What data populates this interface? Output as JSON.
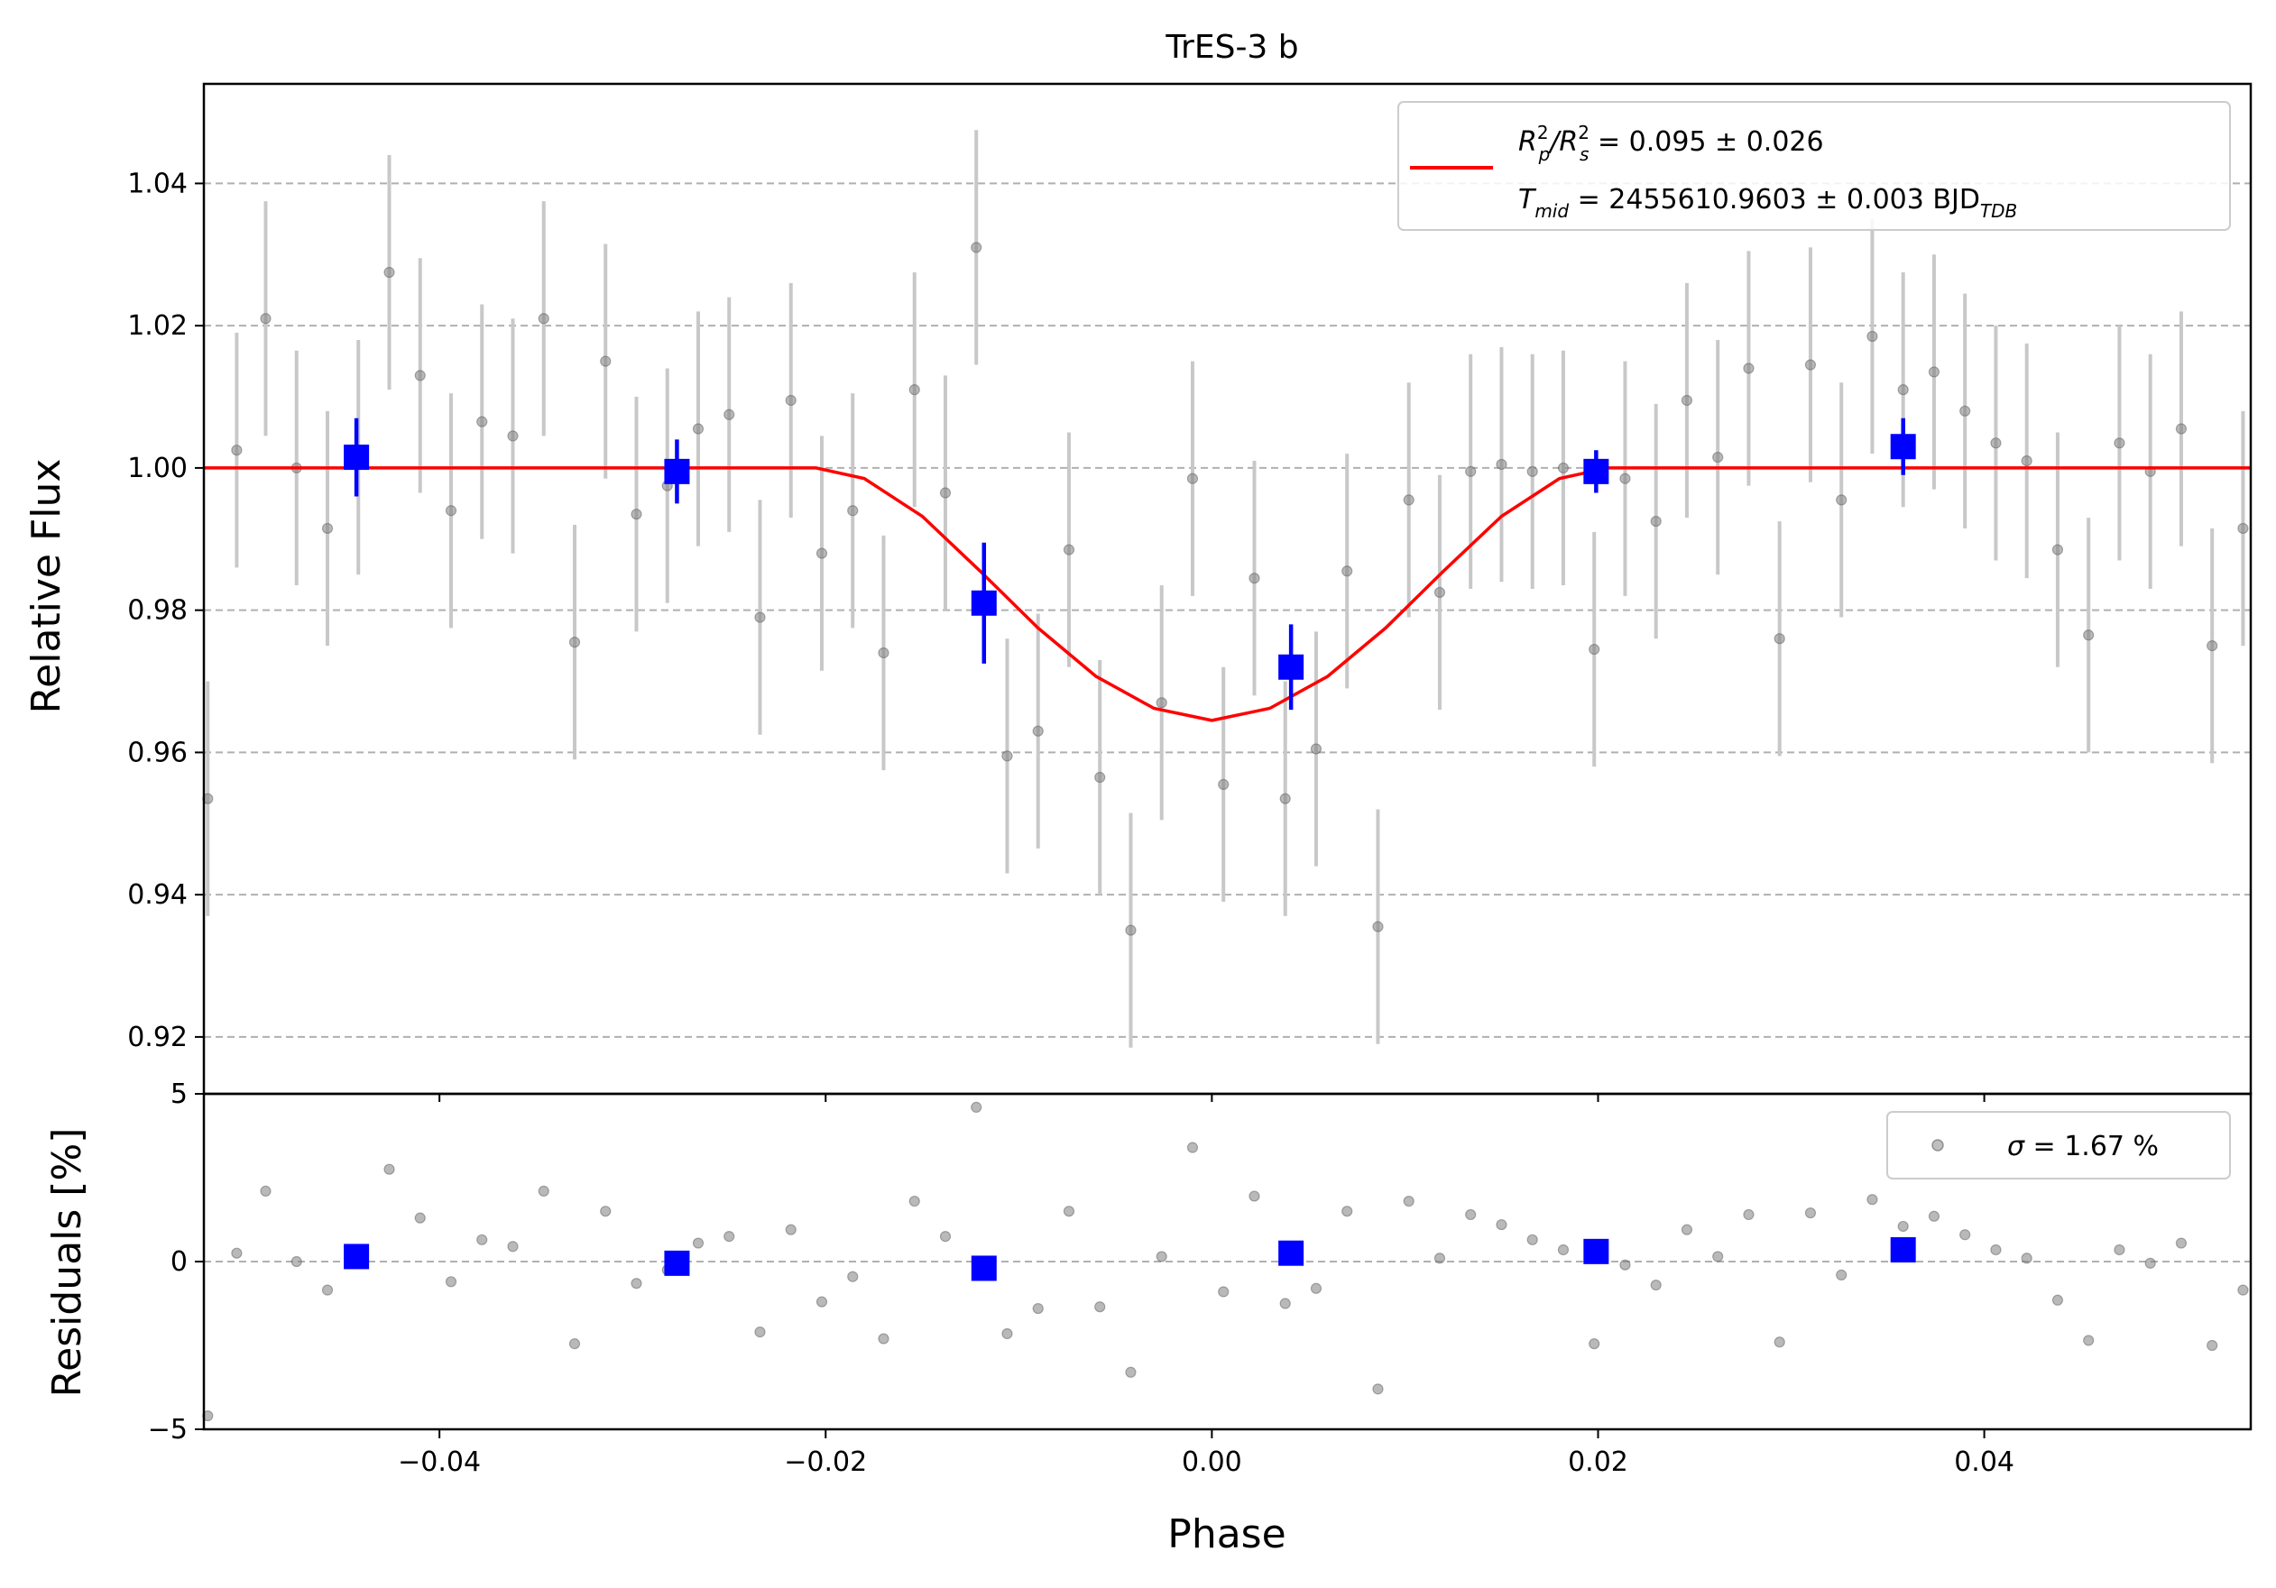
{
  "chart_data": {
    "type": "scatter",
    "title": "TrES-3 b",
    "xlabel": "Phase",
    "xlim": [
      -0.0522,
      0.0538
    ],
    "xticks": [
      -0.04,
      -0.02,
      0.0,
      0.02,
      0.04
    ],
    "xtick_labels": [
      "−0.04",
      "−0.02",
      "0.00",
      "0.02",
      "0.04"
    ],
    "grid": "horizontal dashed",
    "colors": {
      "data": "#808080",
      "errorbar": "#c8c8c8",
      "binned": "#0000ff",
      "model": "#ff0000"
    },
    "top_panel": {
      "ylabel": "Relative Flux",
      "ylim": [
        0.912,
        1.054
      ],
      "yticks": [
        0.92,
        0.94,
        0.96,
        0.98,
        1.0,
        1.02,
        1.04
      ],
      "ytick_labels": [
        "0.92",
        "0.94",
        "0.96",
        "0.98",
        "1.00",
        "1.02",
        "1.04"
      ],
      "legend_position": "top-right",
      "legend": {
        "line1_main": "Rₚ²/Rₛ² = 0.095 ± 0.026",
        "line1_a": "R",
        "line1_a_sup": "2",
        "line1_a_sub": "p",
        "line1_slash": "/R",
        "line1_b_sup": "2",
        "line1_b_sub": "s",
        "line1_value": " = 0.095 ± 0.026",
        "line2_a": "T",
        "line2_a_sub": "mid",
        "line2_value": " = 2455610.9603 ± 0.003 BJD",
        "line2_sub": "TDB"
      },
      "model": {
        "name": "transit model",
        "phase": [
          -0.0522,
          -0.0205,
          -0.018,
          -0.015,
          -0.012,
          -0.009,
          -0.006,
          -0.003,
          0.0,
          0.003,
          0.006,
          0.009,
          0.012,
          0.015,
          0.018,
          0.0205,
          0.0538
        ],
        "flux": [
          1.0,
          1.0,
          0.9985,
          0.9932,
          0.9855,
          0.9775,
          0.9707,
          0.9662,
          0.9645,
          0.9662,
          0.9707,
          0.9775,
          0.9855,
          0.9932,
          0.9985,
          1.0,
          1.0
        ]
      },
      "data": {
        "phase": [
          -0.052,
          -0.0505,
          -0.049,
          -0.0474,
          -0.0458,
          -0.0442,
          -0.0426,
          -0.041,
          -0.0394,
          -0.0378,
          -0.0362,
          -0.0346,
          -0.033,
          -0.0314,
          -0.0298,
          -0.0282,
          -0.0266,
          -0.025,
          -0.0234,
          -0.0218,
          -0.0202,
          -0.0186,
          -0.017,
          -0.0154,
          -0.0138,
          -0.0122,
          -0.0106,
          -0.009,
          -0.0074,
          -0.0058,
          -0.0042,
          -0.0026,
          -0.001,
          0.0006,
          0.0022,
          0.0038,
          0.0054,
          0.007,
          0.0086,
          0.0102,
          0.0118,
          0.0134,
          0.015,
          0.0166,
          0.0182,
          0.0198,
          0.0214,
          0.023,
          0.0246,
          0.0262,
          0.0278,
          0.0294,
          0.031,
          0.0326,
          0.0342,
          0.0358,
          0.0374,
          0.039,
          0.0406,
          0.0422,
          0.0438,
          0.0454,
          0.047,
          0.0486,
          0.0502,
          0.0518,
          0.0534
        ],
        "flux": [
          0.9535,
          1.0025,
          1.021,
          1.0,
          0.9915,
          1.0015,
          1.0275,
          1.013,
          0.994,
          1.0065,
          1.0045,
          1.021,
          0.9755,
          1.015,
          0.9935,
          0.9975,
          1.0055,
          1.0075,
          0.979,
          1.0095,
          0.988,
          0.994,
          0.974,
          1.011,
          0.9965,
          1.031,
          0.9595,
          0.963,
          0.9885,
          0.9565,
          0.935,
          0.967,
          0.9985,
          0.9555,
          0.9845,
          0.9535,
          0.9605,
          0.9855,
          0.9355,
          0.9955,
          0.9825,
          0.9995,
          1.0005,
          0.9995,
          1.0,
          0.9745,
          0.9985,
          0.9925,
          1.0095,
          1.0015,
          1.014,
          0.976,
          1.0145,
          0.9955,
          1.0185,
          1.011,
          1.0135,
          1.008,
          1.0035,
          1.001,
          0.9885,
          0.9765,
          1.0035,
          0.9995,
          1.0055,
          0.975,
          0.9915
        ],
        "error": 0.0165
      },
      "binned": {
        "phase": [
          -0.0443,
          -0.0277,
          -0.0118,
          0.0041,
          0.0199,
          0.0358
        ],
        "flux": [
          1.0015,
          0.9995,
          0.981,
          0.972,
          0.9995,
          1.003
        ],
        "error": [
          0.0055,
          0.0045,
          0.0085,
          0.006,
          0.003,
          0.004
        ]
      }
    },
    "bottom_panel": {
      "ylabel": "Residuals [%]",
      "ylim": [
        -5,
        5
      ],
      "yticks": [
        -5,
        0,
        5
      ],
      "ytick_labels": [
        "−5",
        "0",
        "5"
      ],
      "legend_position": "top-right",
      "legend": {
        "symbol": "σ",
        "value": " = 1.67 %"
      },
      "residuals": [
        -4.6,
        0.25,
        2.1,
        0.0,
        -0.85,
        0.1,
        2.75,
        1.3,
        -0.6,
        0.65,
        0.45,
        2.1,
        -2.45,
        1.5,
        -0.65,
        -0.25,
        0.55,
        0.75,
        -2.1,
        0.95,
        -1.2,
        -0.45,
        -2.3,
        1.8,
        0.75,
        4.6,
        -2.15,
        -1.4,
        1.5,
        -1.35,
        -3.3,
        0.15,
        3.4,
        -0.9,
        1.95,
        -1.25,
        -0.8,
        1.5,
        -3.8,
        1.8,
        0.1,
        1.4,
        1.1,
        0.65,
        0.35,
        -2.45,
        -0.1,
        -0.7,
        0.95,
        0.15,
        1.4,
        -2.4,
        1.45,
        -0.4,
        1.85,
        1.05,
        1.35,
        0.8,
        0.35,
        0.1,
        -1.15,
        -2.35,
        0.35,
        -0.05,
        0.55,
        -2.5,
        -0.85
      ],
      "binned_residuals": [
        0.15,
        -0.05,
        -0.2,
        0.25,
        0.3,
        0.35
      ]
    }
  }
}
